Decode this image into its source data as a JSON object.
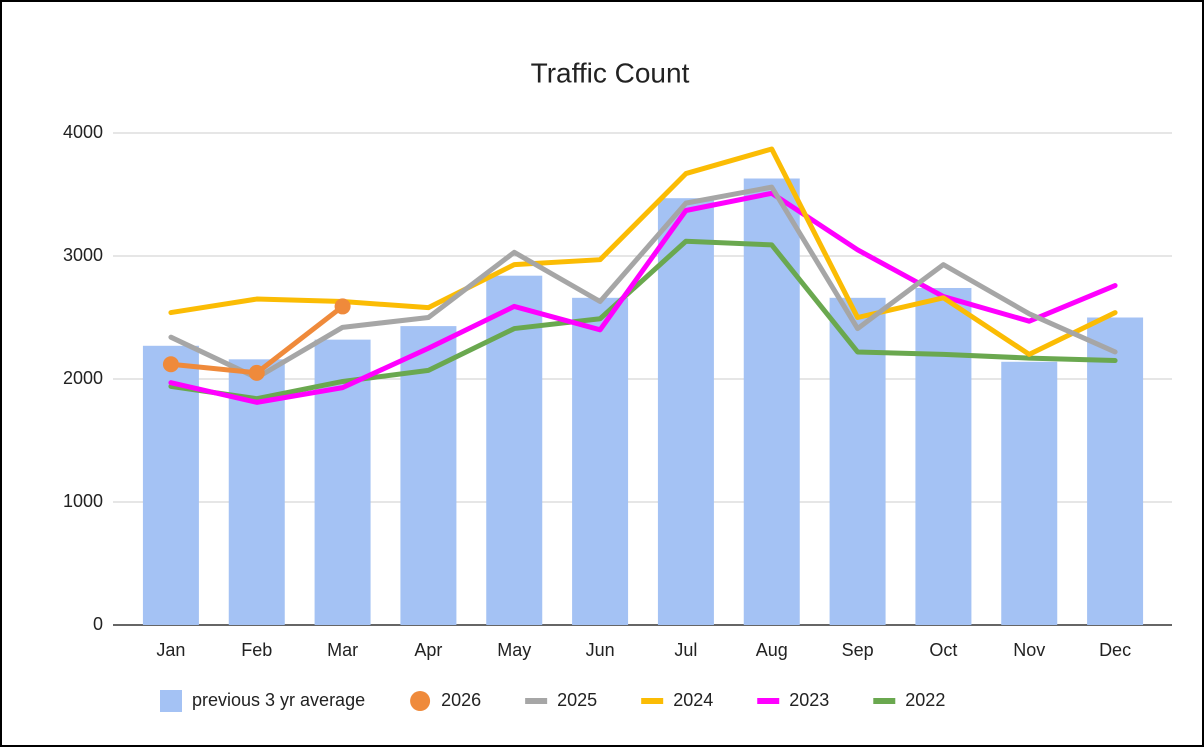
{
  "chart_data": {
    "type": "combo",
    "title": "Traffic Count",
    "categories": [
      "Jan",
      "Feb",
      "Mar",
      "Apr",
      "May",
      "Jun",
      "Jul",
      "Aug",
      "Sep",
      "Oct",
      "Nov",
      "Dec"
    ],
    "series": [
      {
        "name": "previous 3 yr average",
        "type": "bar",
        "color": "#a4c2f4",
        "values": [
          2270,
          2160,
          2320,
          2430,
          2840,
          2660,
          3470,
          3630,
          2660,
          2740,
          2140,
          2500
        ]
      },
      {
        "name": "2026",
        "type": "line",
        "marker": true,
        "color": "#ef8a3b",
        "values": [
          2120,
          2050,
          2590,
          null,
          null,
          null,
          null,
          null,
          null,
          null,
          null,
          null
        ]
      },
      {
        "name": "2025",
        "type": "line",
        "color": "#a6a6a6",
        "values": [
          2340,
          2010,
          2420,
          2500,
          3030,
          2630,
          3430,
          3560,
          2410,
          2930,
          2530,
          2220
        ]
      },
      {
        "name": "2024",
        "type": "line",
        "color": "#fbbc04",
        "values": [
          2540,
          2650,
          2630,
          2580,
          2930,
          2970,
          3670,
          3870,
          2500,
          2660,
          2200,
          2540
        ]
      },
      {
        "name": "2023",
        "type": "line",
        "color": "#ff00ff",
        "values": [
          1970,
          1810,
          1930,
          2250,
          2590,
          2400,
          3370,
          3510,
          3050,
          2670,
          2470,
          2760
        ]
      },
      {
        "name": "2022",
        "type": "line",
        "color": "#6aa84f",
        "values": [
          1940,
          1840,
          1980,
          2070,
          2410,
          2490,
          3120,
          3090,
          2220,
          2200,
          2170,
          2150
        ]
      }
    ],
    "ylim": [
      0,
      4000
    ],
    "yticks": [
      0,
      1000,
      2000,
      3000,
      4000
    ],
    "grid": true,
    "legend": "bottom"
  }
}
